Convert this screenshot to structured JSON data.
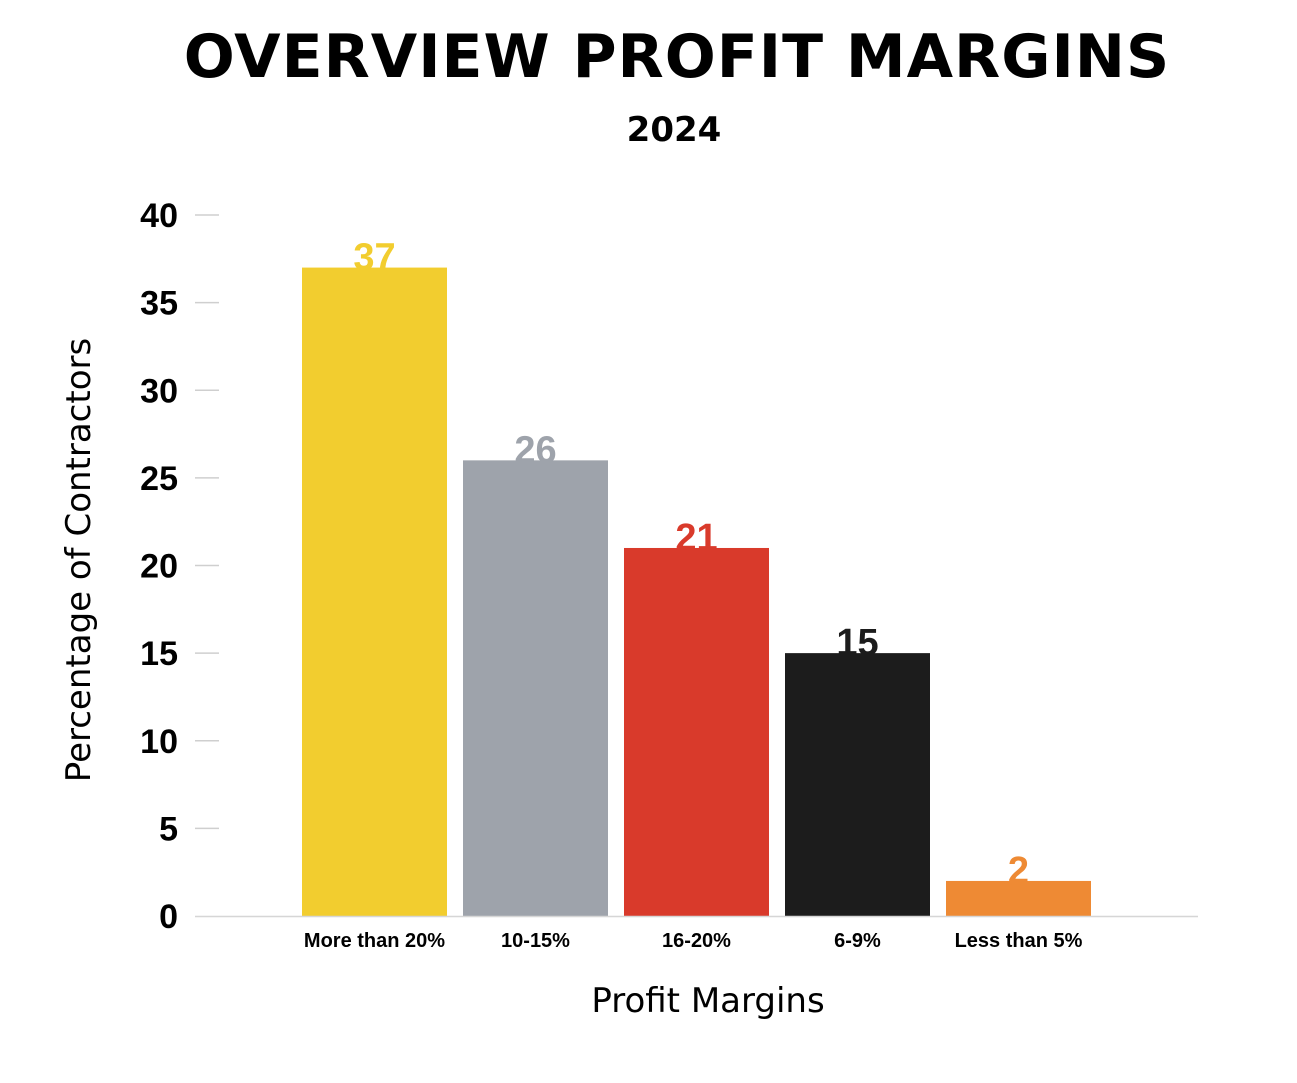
{
  "chart_data": {
    "type": "bar",
    "title": "OVERVIEW PROFIT MARGINS",
    "subtitle": "2024",
    "xlabel": "Profit Margins",
    "ylabel": "Percentage of Contractors",
    "categories": [
      "More than 20%",
      "10-15%",
      "16-20%",
      "6-9%",
      "Less than 5%"
    ],
    "values": [
      37,
      26,
      21,
      15,
      2
    ],
    "data_labels": [
      "37",
      "26",
      "21",
      "15",
      "2"
    ],
    "colors": [
      "#f2cd2f",
      "#9ea3ab",
      "#d93a2b",
      "#1c1c1c",
      "#ee8a34"
    ],
    "ylim": [
      0,
      40
    ],
    "yticks": [
      0,
      5,
      10,
      15,
      20,
      25,
      30,
      35,
      40
    ],
    "ytick_labels": [
      "0",
      "5",
      "10",
      "15",
      "20",
      "25",
      "30",
      "35",
      "40"
    ],
    "grid": false,
    "legend": "none"
  }
}
